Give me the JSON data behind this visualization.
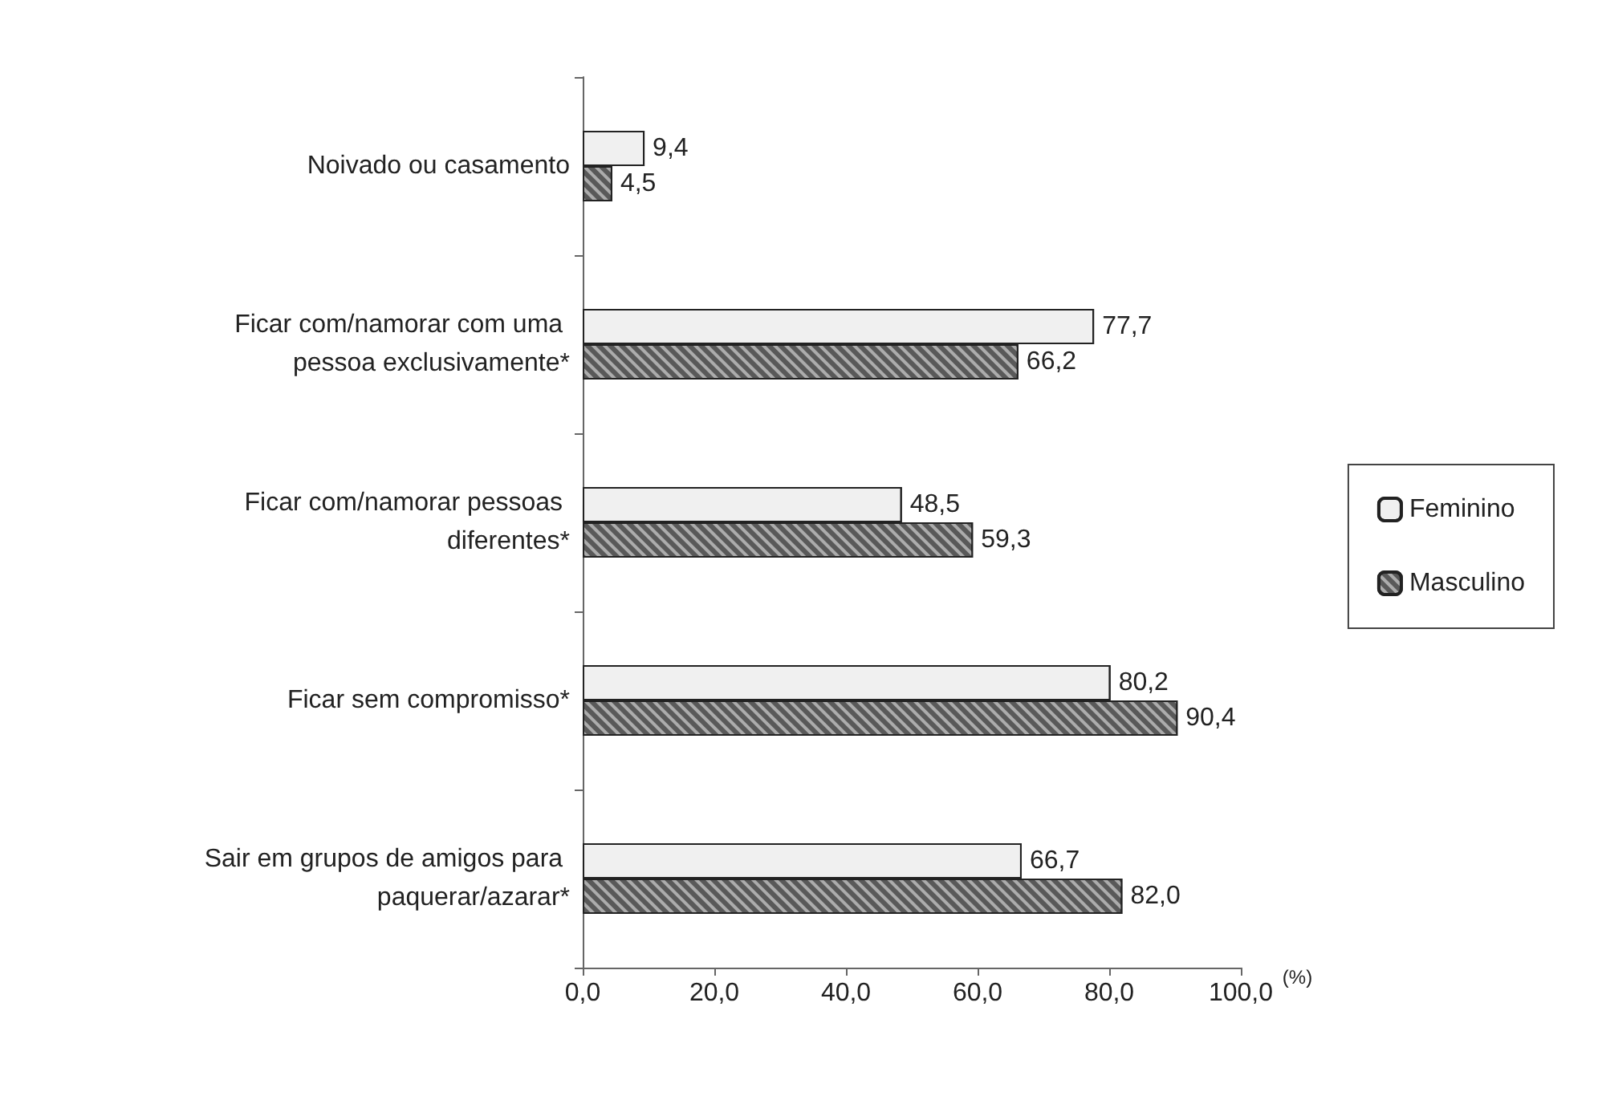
{
  "chart_data": {
    "type": "bar",
    "orientation": "horizontal",
    "xlabel": "(%)",
    "categories": [
      "Noivado ou casamento",
      "Ficar com/namorar com uma pessoa exclusivamente*",
      "Ficar com/namorar pessoas diferentes*",
      "Ficar sem compromisso*",
      "Sair em grupos de amigos para paquerar/azarar*"
    ],
    "series": [
      {
        "name": "Feminino",
        "color": "#f0f0f0",
        "values": [
          9.4,
          77.7,
          48.5,
          80.2,
          66.7
        ],
        "value_labels": [
          "9,4",
          "77,7",
          "48,5",
          "80,2",
          "66,7"
        ]
      },
      {
        "name": "Masculino",
        "color": "#595959",
        "values": [
          4.5,
          66.2,
          59.3,
          90.4,
          82.0
        ],
        "value_labels": [
          "4,5",
          "66,2",
          "59,3",
          "90,4",
          "82,0"
        ]
      }
    ],
    "xlim": [
      0,
      100
    ],
    "xticks": [
      {
        "value": 0,
        "label": "0,0"
      },
      {
        "value": 20,
        "label": "20,0"
      },
      {
        "value": 40,
        "label": "40,0"
      },
      {
        "value": 60,
        "label": "60,0"
      },
      {
        "value": 80,
        "label": "80,0"
      },
      {
        "value": 100,
        "label": "100,0"
      }
    ],
    "legend": "right",
    "grid": false
  }
}
